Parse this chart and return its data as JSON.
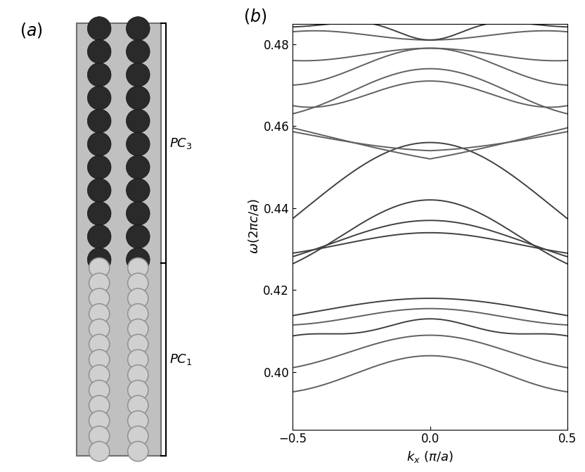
{
  "fig_width": 8.32,
  "fig_height": 6.71,
  "bg_color": "#ffffff",
  "rect_color": "#c0c0c0",
  "dark_circle_color": "#2a2a2a",
  "dark_circle_edge": "#111111",
  "light_circle_edge": "#909090",
  "light_circle_face": "#d0d0d0",
  "ylim": [
    0.386,
    0.485
  ],
  "xlim": [
    -0.5,
    0.5
  ],
  "yticks": [
    0.4,
    0.42,
    0.44,
    0.46,
    0.48
  ],
  "xticks": [
    -0.5,
    0,
    0.5
  ],
  "gray": "#606060",
  "dgray": "#404040"
}
